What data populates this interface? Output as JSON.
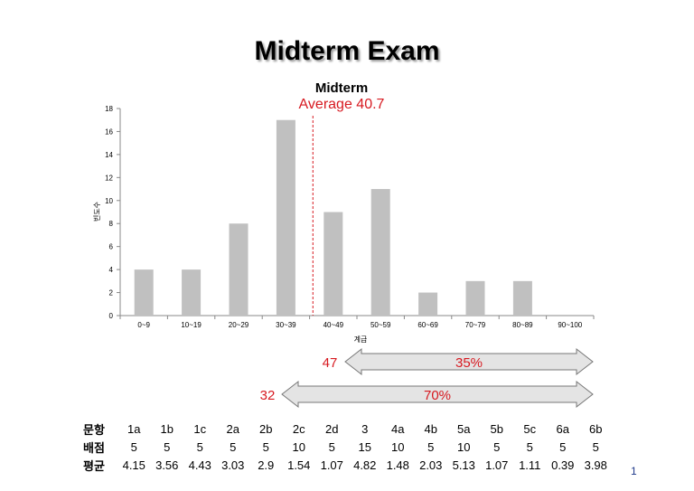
{
  "slide": {
    "title": "Midterm Exam",
    "page_number": "1"
  },
  "chart_data": {
    "type": "bar",
    "title": "Midterm",
    "subtitle": "Average 40.7",
    "average": 40.7,
    "xlabel": "계급",
    "ylabel": "빈도수",
    "categories": [
      "0~9",
      "10~19",
      "20~29",
      "30~39",
      "40~49",
      "50~59",
      "60~69",
      "70~79",
      "80~89",
      "90~100"
    ],
    "values": [
      4,
      4,
      8,
      17,
      9,
      11,
      2,
      3,
      3,
      0
    ],
    "ylim": [
      0,
      18
    ],
    "yticks": [
      "0",
      "2",
      "4",
      "6",
      "8",
      "10",
      "12",
      "14",
      "16",
      "18"
    ],
    "grid": false,
    "bar_color": "#c0c0c0",
    "average_line_color": "#d71920"
  },
  "annotations": {
    "arrows": [
      {
        "count": "47",
        "percent": "35%",
        "from_category": "40~49"
      },
      {
        "count": "32",
        "percent": "70%",
        "from_category": "30~39"
      }
    ],
    "text_color": "#d71920",
    "arrow_fill": "#e4e4e4"
  },
  "score_table": {
    "row_headers": [
      "문항",
      "배점",
      "평균"
    ],
    "items": [
      "1a",
      "1b",
      "1c",
      "2a",
      "2b",
      "2c",
      "2d",
      "3",
      "4a",
      "4b",
      "5a",
      "5b",
      "5c",
      "6a",
      "6b"
    ],
    "points": [
      "5",
      "5",
      "5",
      "5",
      "5",
      "10",
      "5",
      "15",
      "10",
      "5",
      "10",
      "5",
      "5",
      "5",
      "5"
    ],
    "averages": [
      "4.15",
      "3.56",
      "4.43",
      "3.03",
      "2.9",
      "1.54",
      "1.07",
      "4.82",
      "1.48",
      "2.03",
      "5.13",
      "1.07",
      "1.11",
      "0.39",
      "3.98"
    ]
  }
}
